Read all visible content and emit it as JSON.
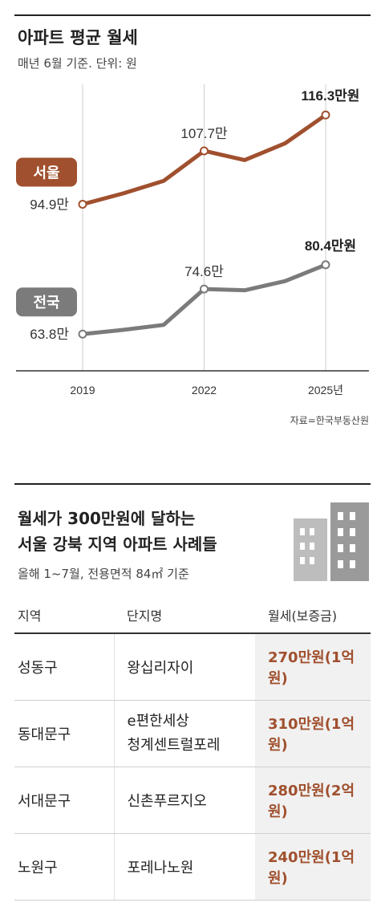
{
  "chart_data": {
    "type": "line",
    "title": "아파트 평균 월세",
    "subtitle": "매년 6월 기준. 단위: 원",
    "x": [
      "2019",
      "2020",
      "2021",
      "2022",
      "2023",
      "2024",
      "2025"
    ],
    "x_tick_labels": [
      "2019",
      "2022",
      "2025년"
    ],
    "ylim": [
      55,
      125
    ],
    "grid": false,
    "series": [
      {
        "name": "서울",
        "values": [
          94.9,
          97.5,
          100.5,
          107.7,
          105.5,
          109.5,
          116.3
        ],
        "labels": {
          "0": "94.9만",
          "3": "107.7만",
          "6": "116.3만원"
        },
        "color": "#a0502e"
      },
      {
        "name": "전국",
        "values": [
          63.8,
          64.8,
          66.0,
          74.6,
          74.3,
          76.5,
          80.4
        ],
        "labels": {
          "0": "63.8만",
          "3": "74.6만",
          "6": "80.4만원"
        },
        "color": "#7b7b7b"
      }
    ],
    "source": "자료=한국부동산원"
  },
  "table": {
    "title_line1": "월세가 300만원에 달하는",
    "title_line2": "서울 강북 지역 아파트 사례들",
    "subtitle": "올해 1~7월, 전용면적 84㎡ 기준",
    "headers": [
      "지역",
      "단지명",
      "월세(보증금)"
    ],
    "rows": [
      {
        "region": "성동구",
        "complex": "왕십리자이",
        "rent": "270만원(1억원)"
      },
      {
        "region": "동대문구",
        "complex": "e편한세상\n청계센트럴포레",
        "rent": "310만원(1억원)"
      },
      {
        "region": "서대문구",
        "complex": "신촌푸르지오",
        "rent": "280만원(2억원)"
      },
      {
        "region": "노원구",
        "complex": "포레나노원",
        "rent": "240만원(1억원)"
      }
    ]
  },
  "colors": {
    "seoul": "#a0502e",
    "national": "#7b7b7b",
    "rent_text": "#a0502e"
  },
  "icons": {
    "building": "building-icon"
  }
}
